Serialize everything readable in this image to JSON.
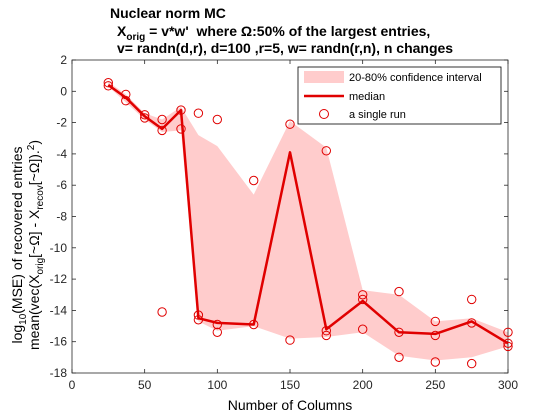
{
  "chart_data": {
    "type": "line",
    "title_lines": [
      "Nuclear norm MC",
      "where Ω:50% of the largest entries,",
      "v= randn(d,r), d=100 ,r=5, w= randn(r,n), n changes"
    ],
    "title_xorig_prefix": "X",
    "title_xorig_sub": "orig",
    "title_xorig_eq": " = v*w'",
    "xlabel": "Number of Columns",
    "ylabel_line1": "log",
    "ylabel_line1_sub": "10",
    "ylabel_line1_rest": "(MSE) of recovered entries",
    "ylabel_line2_parts": [
      "mean(vec(X",
      "orig",
      "[~Ω] - X",
      "recov",
      "[~Ω]).",
      "2",
      ")"
    ],
    "xlim": [
      0,
      300
    ],
    "ylim": [
      -18,
      2
    ],
    "xticks": [
      0,
      50,
      100,
      150,
      200,
      250,
      300
    ],
    "yticks": [
      2,
      0,
      -2,
      -4,
      -6,
      -8,
      -10,
      -12,
      -14,
      -16,
      -18
    ],
    "legend": {
      "position": "top-right",
      "entries": [
        "20-80% confidence interval",
        "median",
        "a single run"
      ]
    },
    "colors": {
      "band": "#ffcccc",
      "median": "#e00000",
      "runs": "#e00000"
    },
    "x": [
      25,
      37,
      50,
      62,
      75,
      87,
      100,
      125,
      150,
      175,
      200,
      225,
      250,
      275,
      300
    ],
    "median": [
      0.4,
      -0.4,
      -1.6,
      -2.4,
      -1.2,
      -14.5,
      -14.8,
      -14.9,
      -3.9,
      -15.2,
      -13.4,
      -15.4,
      -15.5,
      -14.7,
      -16.1
    ],
    "band_upper": [
      0.6,
      -0.2,
      -1.4,
      -1.8,
      -1.0,
      -2.8,
      -3.5,
      -6.6,
      -1.9,
      -3.6,
      -12.7,
      -13.0,
      -14.7,
      -14.5,
      -15.4
    ],
    "band_lower": [
      0.3,
      -0.7,
      -1.8,
      -2.6,
      -2.5,
      -14.7,
      -15.3,
      -15.0,
      -15.8,
      -15.7,
      -15.4,
      -16.9,
      -17.2,
      -17.0,
      -16.3
    ],
    "runs": [
      [
        25,
        0.55
      ],
      [
        25,
        0.35
      ],
      [
        37,
        -0.2
      ],
      [
        37,
        -0.6
      ],
      [
        50,
        -1.5
      ],
      [
        50,
        -1.7
      ],
      [
        62,
        -1.8
      ],
      [
        62,
        -2.5
      ],
      [
        62,
        -14.1
      ],
      [
        75,
        -1.2
      ],
      [
        75,
        -2.4
      ],
      [
        87,
        -1.4
      ],
      [
        87,
        -14.3
      ],
      [
        87,
        -14.6
      ],
      [
        100,
        -1.8
      ],
      [
        100,
        -14.9
      ],
      [
        100,
        -15.4
      ],
      [
        125,
        -5.7
      ],
      [
        125,
        -14.9
      ],
      [
        150,
        -2.1
      ],
      [
        150,
        -15.9
      ],
      [
        175,
        -3.8
      ],
      [
        175,
        -15.3
      ],
      [
        175,
        -15.6
      ],
      [
        200,
        -13.0
      ],
      [
        200,
        -13.3
      ],
      [
        200,
        -15.2
      ],
      [
        225,
        -12.8
      ],
      [
        225,
        -15.4
      ],
      [
        225,
        -17.0
      ],
      [
        250,
        -14.7
      ],
      [
        250,
        -15.6
      ],
      [
        250,
        -17.3
      ],
      [
        275,
        -13.3
      ],
      [
        275,
        -14.8
      ],
      [
        275,
        -17.4
      ],
      [
        300,
        -15.4
      ],
      [
        300,
        -16.1
      ],
      [
        300,
        -16.3
      ]
    ]
  }
}
